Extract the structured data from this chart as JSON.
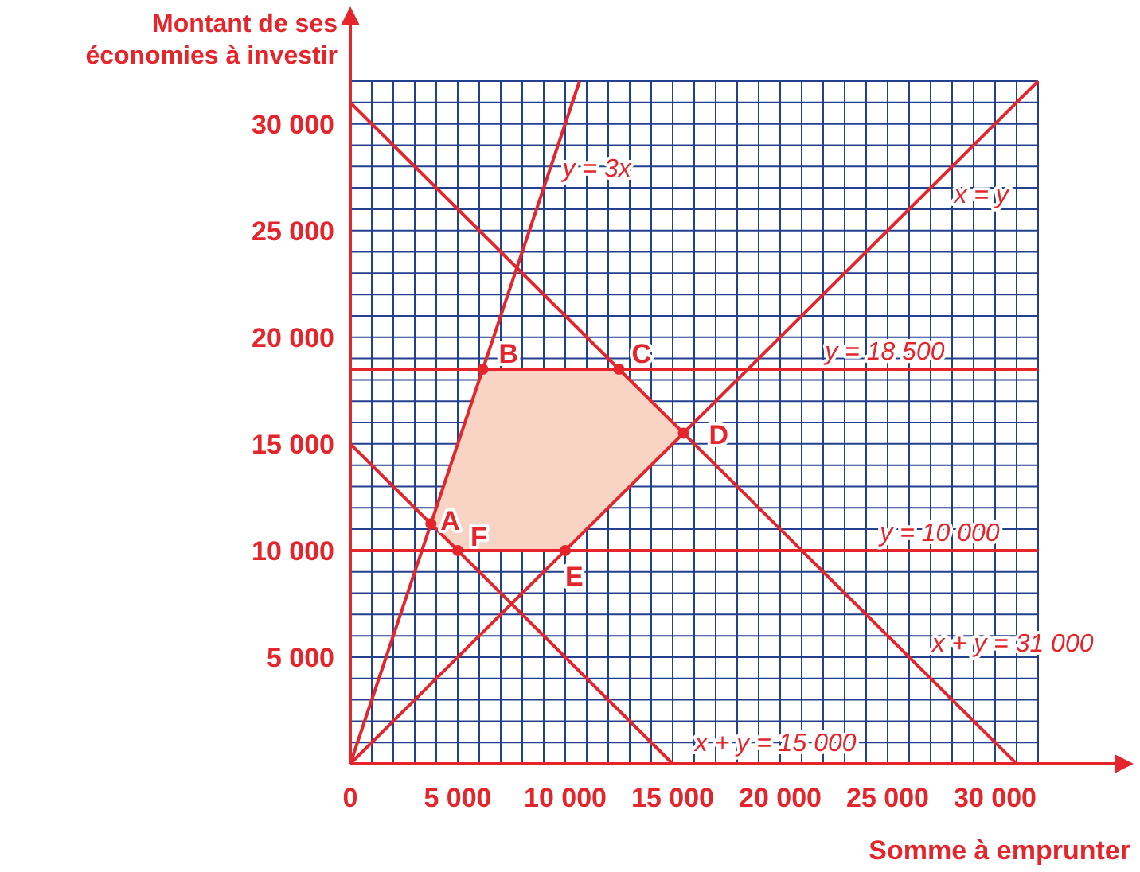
{
  "chart_data": {
    "type": "line",
    "xlabel": "Somme à emprunter",
    "ylabel": "Montant de ses\néconomies à investir",
    "xlim": [
      0,
      32000
    ],
    "ylim": [
      0,
      32000
    ],
    "xticks": [
      {
        "value": 0,
        "label": "0"
      },
      {
        "value": 1000,
        "label": null
      },
      {
        "value": 2000,
        "label": null
      },
      {
        "value": 3000,
        "label": null
      },
      {
        "value": 4000,
        "label": null
      },
      {
        "value": 5000,
        "label": "5 000"
      },
      {
        "value": 6000,
        "label": null
      },
      {
        "value": 7000,
        "label": null
      },
      {
        "value": 8000,
        "label": null
      },
      {
        "value": 9000,
        "label": null
      },
      {
        "value": 10000,
        "label": "10 000"
      },
      {
        "value": 11000,
        "label": null
      },
      {
        "value": 12000,
        "label": null
      },
      {
        "value": 13000,
        "label": null
      },
      {
        "value": 14000,
        "label": null
      },
      {
        "value": 15000,
        "label": "15 000"
      },
      {
        "value": 16000,
        "label": null
      },
      {
        "value": 17000,
        "label": null
      },
      {
        "value": 18000,
        "label": null
      },
      {
        "value": 19000,
        "label": null
      },
      {
        "value": 20000,
        "label": "20 000"
      },
      {
        "value": 21000,
        "label": null
      },
      {
        "value": 22000,
        "label": null
      },
      {
        "value": 23000,
        "label": null
      },
      {
        "value": 24000,
        "label": null
      },
      {
        "value": 25000,
        "label": "25 000"
      },
      {
        "value": 26000,
        "label": null
      },
      {
        "value": 27000,
        "label": null
      },
      {
        "value": 28000,
        "label": null
      },
      {
        "value": 29000,
        "label": null
      },
      {
        "value": 30000,
        "label": "30 000"
      },
      {
        "value": 31000,
        "label": null
      },
      {
        "value": 32000,
        "label": null
      }
    ],
    "yticks": [
      {
        "value": 0,
        "label": null
      },
      {
        "value": 1000,
        "label": null
      },
      {
        "value": 2000,
        "label": null
      },
      {
        "value": 3000,
        "label": null
      },
      {
        "value": 4000,
        "label": null
      },
      {
        "value": 5000,
        "label": "5 000"
      },
      {
        "value": 6000,
        "label": null
      },
      {
        "value": 7000,
        "label": null
      },
      {
        "value": 8000,
        "label": null
      },
      {
        "value": 9000,
        "label": null
      },
      {
        "value": 10000,
        "label": "10 000"
      },
      {
        "value": 11000,
        "label": null
      },
      {
        "value": 12000,
        "label": null
      },
      {
        "value": 13000,
        "label": null
      },
      {
        "value": 14000,
        "label": null
      },
      {
        "value": 15000,
        "label": "15 000"
      },
      {
        "value": 16000,
        "label": null
      },
      {
        "value": 17000,
        "label": null
      },
      {
        "value": 18000,
        "label": null
      },
      {
        "value": 19000,
        "label": null
      },
      {
        "value": 20000,
        "label": "20 000"
      },
      {
        "value": 21000,
        "label": null
      },
      {
        "value": 22000,
        "label": null
      },
      {
        "value": 23000,
        "label": null
      },
      {
        "value": 24000,
        "label": null
      },
      {
        "value": 25000,
        "label": "25 000"
      },
      {
        "value": 26000,
        "label": null
      },
      {
        "value": 27000,
        "label": null
      },
      {
        "value": 28000,
        "label": null
      },
      {
        "value": 29000,
        "label": null
      },
      {
        "value": 30000,
        "label": "30 000"
      },
      {
        "value": 31000,
        "label": null
      },
      {
        "value": 32000,
        "label": null
      }
    ],
    "grid": true,
    "series": [
      {
        "name": "y = 3x",
        "color": "#e5252c",
        "x": [
          0,
          10667
        ],
        "values": [
          0,
          32000
        ]
      },
      {
        "name": "x = y",
        "color": "#e5252c",
        "x": [
          0,
          32000
        ],
        "values": [
          0,
          32000
        ]
      },
      {
        "name": "y = 18 500",
        "color": "#e5252c",
        "x": [
          0,
          32000
        ],
        "values": [
          18500,
          18500
        ]
      },
      {
        "name": "y = 10 000",
        "color": "#e5252c",
        "x": [
          0,
          32000
        ],
        "values": [
          10000,
          10000
        ]
      },
      {
        "name": "x + y = 15 000",
        "color": "#e5252c",
        "x": [
          0,
          15000
        ],
        "values": [
          15000,
          0
        ]
      },
      {
        "name": "x + y = 31 000",
        "color": "#e5252c",
        "x": [
          0,
          31000
        ],
        "values": [
          31000,
          0
        ]
      },
      {
        "type": "scatter",
        "marker": "circle",
        "color": "#e5252c",
        "x": [
          3750,
          6167,
          12500,
          15500,
          10000,
          5000
        ],
        "values": [
          11250,
          18500,
          18500,
          15500,
          10000,
          10000
        ]
      }
    ],
    "annotations": [
      {
        "text": "A",
        "x": 3750,
        "y": 11250
      },
      {
        "text": "B",
        "x": 6167,
        "y": 18500
      },
      {
        "text": "C",
        "x": 12500,
        "y": 18500
      },
      {
        "text": "D",
        "x": 15500,
        "y": 15500
      },
      {
        "text": "E",
        "x": 10000,
        "y": 10000
      },
      {
        "text": "F",
        "x": 5000,
        "y": 10000
      }
    ]
  }
}
